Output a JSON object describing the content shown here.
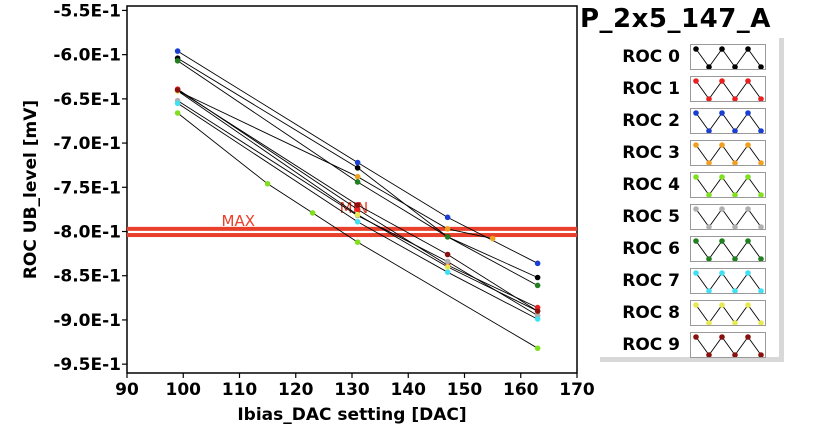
{
  "chart_data": {
    "type": "line",
    "title": "P_2x5_147_A",
    "xlabel": "Ibias_DAC setting [DAC]",
    "ylabel": "ROC UB_level [mV]",
    "xlim": [
      90,
      170
    ],
    "ylim": [
      -0.96,
      -0.545
    ],
    "xticks": [
      "90",
      "100",
      "110",
      "120",
      "130",
      "140",
      "150",
      "160",
      "170"
    ],
    "yticks": [
      "-5.5E-1",
      "-6.0E-1",
      "-6.5E-1",
      "-7.0E-1",
      "-7.5E-1",
      "-8.0E-1",
      "-8.5E-1",
      "-9.0E-1",
      "-9.5E-1"
    ],
    "grid": true,
    "legend_position": "right",
    "reference_lines": [
      {
        "label": "MAX",
        "y": -0.797
      },
      {
        "label": "MIN",
        "y": -0.804
      }
    ],
    "series": [
      {
        "name": "ROC 0",
        "color": "#000000",
        "points": [
          [
            99,
            -0.604
          ],
          [
            131,
            -0.728
          ],
          [
            147,
            -0.806
          ],
          [
            163,
            -0.852
          ]
        ]
      },
      {
        "name": "ROC 1",
        "color": "#e82020",
        "points": [
          [
            99,
            -0.639
          ],
          [
            131,
            -0.775
          ],
          [
            147,
            -0.838
          ],
          [
            163,
            -0.886
          ]
        ]
      },
      {
        "name": "ROC 2",
        "color": "#1a3fd0",
        "points": [
          [
            99,
            -0.596
          ],
          [
            131,
            -0.722
          ],
          [
            147,
            -0.784
          ],
          [
            163,
            -0.836
          ]
        ]
      },
      {
        "name": "ROC 3",
        "color": "#f0a020",
        "points": [
          [
            99,
            -0.641
          ],
          [
            131,
            -0.738
          ],
          [
            147,
            -0.797
          ],
          [
            155,
            -0.808
          ]
        ]
      },
      {
        "name": "ROC 4",
        "color": "#80e020",
        "points": [
          [
            99,
            -0.666
          ],
          [
            115,
            -0.746
          ],
          [
            123,
            -0.779
          ],
          [
            131,
            -0.812
          ],
          [
            163,
            -0.932
          ]
        ]
      },
      {
        "name": "ROC 5",
        "color": "#b0b0b0",
        "points": [
          [
            99,
            -0.652
          ],
          [
            131,
            -0.782
          ],
          [
            147,
            -0.834
          ],
          [
            163,
            -0.895
          ]
        ]
      },
      {
        "name": "ROC 6",
        "color": "#208020",
        "points": [
          [
            99,
            -0.607
          ],
          [
            131,
            -0.744
          ],
          [
            147,
            -0.806
          ],
          [
            163,
            -0.861
          ]
        ]
      },
      {
        "name": "ROC 7",
        "color": "#40e0f0",
        "points": [
          [
            99,
            -0.655
          ],
          [
            131,
            -0.789
          ],
          [
            147,
            -0.846
          ],
          [
            163,
            -0.899
          ]
        ]
      },
      {
        "name": "ROC 8",
        "color": "#e8e850",
        "points": [
          [
            99,
            -0.641
          ],
          [
            131,
            -0.781
          ],
          [
            147,
            -0.84
          ],
          [
            163,
            -0.89
          ]
        ]
      },
      {
        "name": "ROC 9",
        "color": "#8a1010",
        "points": [
          [
            99,
            -0.64
          ],
          [
            131,
            -0.77
          ],
          [
            147,
            -0.826
          ],
          [
            163,
            -0.89
          ]
        ]
      }
    ]
  }
}
